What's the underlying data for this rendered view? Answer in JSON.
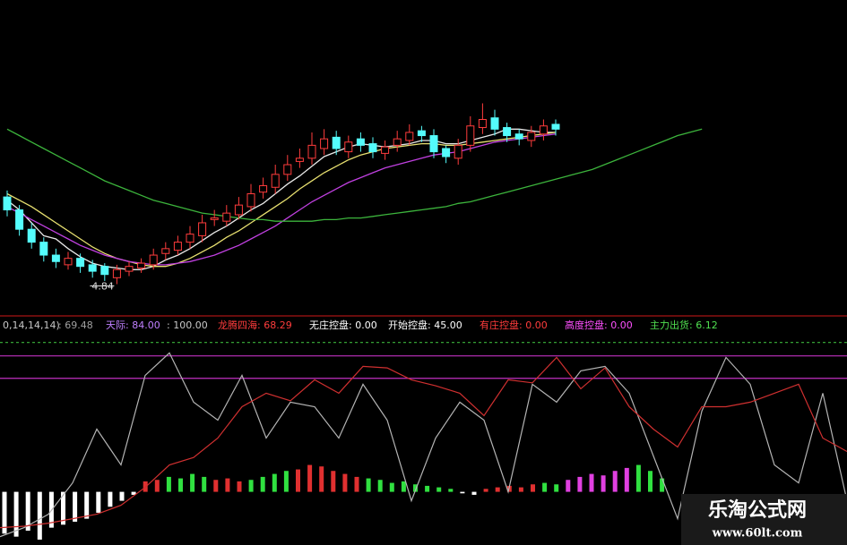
{
  "chart_data": [
    {
      "type": "candlestick",
      "ylim": [
        4.66,
        6.6
      ],
      "up_color": "#ff3c3c",
      "down_color": "#54fcfc",
      "open": [
        5.38,
        5.3,
        5.18,
        5.1,
        5.02,
        4.96,
        5.0,
        4.96,
        4.95,
        4.88,
        4.92,
        4.94,
        4.96,
        5.03,
        5.05,
        5.1,
        5.14,
        5.24,
        5.23,
        5.27,
        5.32,
        5.41,
        5.44,
        5.52,
        5.6,
        5.62,
        5.68,
        5.75,
        5.66,
        5.74,
        5.71,
        5.65,
        5.7,
        5.73,
        5.79,
        5.76,
        5.68,
        5.62,
        5.7,
        5.81,
        5.87,
        5.81,
        5.77,
        5.73,
        5.77,
        5.83
      ],
      "high": [
        5.42,
        5.33,
        5.22,
        5.13,
        5.06,
        5.04,
        5.03,
        4.99,
        4.97,
        4.96,
        4.98,
        5.0,
        5.06,
        5.1,
        5.14,
        5.2,
        5.27,
        5.3,
        5.33,
        5.38,
        5.46,
        5.5,
        5.58,
        5.64,
        5.68,
        5.78,
        5.8,
        5.79,
        5.76,
        5.78,
        5.75,
        5.73,
        5.79,
        5.83,
        5.82,
        5.8,
        5.7,
        5.74,
        5.88,
        5.96,
        5.92,
        5.84,
        5.8,
        5.82,
        5.86,
        5.86
      ],
      "low": [
        5.26,
        5.14,
        5.06,
        4.98,
        4.94,
        4.93,
        4.91,
        4.88,
        4.86,
        4.84,
        4.89,
        4.91,
        4.93,
        4.99,
        5.02,
        5.06,
        5.1,
        5.2,
        5.2,
        5.24,
        5.29,
        5.37,
        5.4,
        5.48,
        5.56,
        5.58,
        5.64,
        5.64,
        5.62,
        5.66,
        5.62,
        5.61,
        5.66,
        5.7,
        5.72,
        5.62,
        5.59,
        5.58,
        5.66,
        5.77,
        5.76,
        5.72,
        5.7,
        5.69,
        5.73,
        5.76
      ],
      "close": [
        5.3,
        5.18,
        5.1,
        5.02,
        4.98,
        5.0,
        4.95,
        4.92,
        4.9,
        4.93,
        4.95,
        4.97,
        5.02,
        5.06,
        5.1,
        5.15,
        5.22,
        5.25,
        5.28,
        5.33,
        5.4,
        5.45,
        5.52,
        5.58,
        5.62,
        5.7,
        5.74,
        5.68,
        5.72,
        5.7,
        5.66,
        5.69,
        5.74,
        5.78,
        5.76,
        5.66,
        5.63,
        5.7,
        5.82,
        5.86,
        5.8,
        5.76,
        5.74,
        5.78,
        5.82,
        5.8
      ],
      "series": [
        {
          "color": "#e8e8e8",
          "values": [
            5.36,
            5.3,
            5.22,
            5.14,
            5.12,
            5.06,
            5.01,
            4.97,
            4.95,
            4.94,
            4.93,
            4.93,
            4.95,
            4.99,
            5.02,
            5.06,
            5.11,
            5.16,
            5.2,
            5.25,
            5.3,
            5.34,
            5.4,
            5.46,
            5.51,
            5.57,
            5.63,
            5.66,
            5.69,
            5.71,
            5.7,
            5.69,
            5.7,
            5.71,
            5.73,
            5.73,
            5.71,
            5.71,
            5.73,
            5.75,
            5.77,
            5.8,
            5.8,
            5.79,
            5.78,
            5.78
          ]
        },
        {
          "color": "#e8e070",
          "values": [
            5.4,
            5.36,
            5.32,
            5.27,
            5.22,
            5.17,
            5.12,
            5.07,
            5.03,
            5.0,
            4.98,
            4.96,
            4.95,
            4.95,
            4.97,
            5.0,
            5.04,
            5.08,
            5.13,
            5.17,
            5.22,
            5.27,
            5.32,
            5.37,
            5.43,
            5.48,
            5.53,
            5.57,
            5.61,
            5.64,
            5.66,
            5.68,
            5.69,
            5.7,
            5.71,
            5.71,
            5.7,
            5.7,
            5.71,
            5.72,
            5.73,
            5.74,
            5.75,
            5.76,
            5.77,
            5.78
          ]
        },
        {
          "color": "#c040e0",
          "values": [
            5.32,
            5.28,
            5.24,
            5.2,
            5.16,
            5.12,
            5.08,
            5.05,
            5.02,
            5.0,
            4.98,
            4.97,
            4.96,
            4.96,
            4.97,
            4.98,
            5.0,
            5.02,
            5.05,
            5.08,
            5.12,
            5.16,
            5.2,
            5.25,
            5.3,
            5.35,
            5.39,
            5.43,
            5.47,
            5.5,
            5.53,
            5.56,
            5.58,
            5.6,
            5.62,
            5.64,
            5.65,
            5.66,
            5.68,
            5.7,
            5.72,
            5.73,
            5.74,
            5.75,
            5.76,
            5.77
          ]
        },
        {
          "color": "#3cb43c",
          "values": [
            5.8,
            5.76,
            5.72,
            5.68,
            5.64,
            5.6,
            5.56,
            5.52,
            5.48,
            5.45,
            5.42,
            5.39,
            5.36,
            5.34,
            5.32,
            5.3,
            5.28,
            5.27,
            5.26,
            5.25,
            5.24,
            5.24,
            5.23,
            5.23,
            5.23,
            5.23,
            5.24,
            5.24,
            5.25,
            5.25,
            5.26,
            5.27,
            5.28,
            5.29,
            5.3,
            5.31,
            5.32,
            5.34,
            5.35,
            5.37,
            5.39,
            5.41,
            5.43,
            5.45,
            5.47,
            5.49,
            5.51,
            5.53,
            5.55,
            5.58,
            5.61,
            5.64,
            5.67,
            5.7,
            5.73,
            5.76,
            5.78,
            5.8
          ]
        }
      ],
      "annotations": [
        {
          "text": "4.84"
        }
      ]
    },
    {
      "type": "indicator",
      "ylim": [
        -35,
        110
      ],
      "header": [
        {
          "text": "0,14,14,14)",
          "color": "#c8c8c8"
        },
        {
          "text": ": 69.48",
          "color": "#a0a0a0"
        },
        {
          "text": "天际: 84.00",
          "color": "#c080ff"
        },
        {
          "text": ": 100.00",
          "color": "#c8c8c8"
        },
        {
          "text": "龙腾四海: 68.29",
          "color": "#ff3c3c"
        },
        {
          "text": "无庄控盘: 0.00",
          "color": "#ffffff"
        },
        {
          "text": "开始控盘: 45.00",
          "color": "#ffffff"
        },
        {
          "text": "有庄控盘: 0.00",
          "color": "#ff3c3c"
        },
        {
          "text": "高度控盘: 0.00",
          "color": "#ff50ff"
        },
        {
          "text": "主力出货: 6.12",
          "color": "#50e050"
        }
      ],
      "hlines": [
        {
          "value": 100,
          "color": "#3cb43c",
          "dash": true
        },
        {
          "value": 91,
          "color": "#c030c0",
          "dash": false
        },
        {
          "value": 76,
          "color": "#c030c0",
          "dash": false
        }
      ],
      "series": [
        {
          "color": "#b4b4b4",
          "values": [
            -30,
            -24,
            -15,
            6,
            42,
            18,
            78,
            93,
            60,
            48,
            78,
            36,
            60,
            57,
            36,
            72,
            48,
            -6,
            36,
            60,
            48,
            0,
            72,
            60,
            81,
            84,
            66,
            24,
            -18,
            54,
            90,
            72,
            18,
            6,
            66,
            -6
          ]
        },
        {
          "color": "#d03030",
          "values": [
            -24,
            -23,
            -21,
            -18,
            -15,
            -9,
            3,
            18,
            23,
            36,
            57,
            66,
            61,
            75,
            66,
            84,
            83,
            75,
            71,
            66,
            51,
            75,
            73,
            90,
            69,
            83,
            57,
            42,
            30,
            57,
            57,
            60,
            66,
            72,
            36,
            27
          ]
        }
      ],
      "histogram": {
        "values": [
          -28,
          -30,
          -26,
          -32,
          -24,
          -22,
          -20,
          -18,
          -14,
          -10,
          -6,
          -2,
          7,
          8,
          10,
          9,
          12,
          10,
          8,
          9,
          7,
          8,
          10,
          12,
          14,
          15,
          18,
          17,
          14,
          12,
          10,
          9,
          8,
          6,
          7,
          5,
          4,
          3,
          2,
          -1,
          -2,
          2,
          3,
          4,
          3,
          5,
          6,
          5,
          8,
          10,
          12,
          11,
          14,
          16,
          18,
          14,
          9
        ],
        "colors": [
          "#ffffff",
          "#ffffff",
          "#ffffff",
          "#ffffff",
          "#ffffff",
          "#ffffff",
          "#ffffff",
          "#ffffff",
          "#ffffff",
          "#ffffff",
          "#ffffff",
          "#ffffff",
          "#e03030",
          "#e03030",
          "#30e040",
          "#30e040",
          "#30e040",
          "#30e040",
          "#e03030",
          "#e03030",
          "#e03030",
          "#30e040",
          "#30e040",
          "#30e040",
          "#30e040",
          "#e03030",
          "#e03030",
          "#e03030",
          "#e03030",
          "#e03030",
          "#e03030",
          "#30e040",
          "#30e040",
          "#30e040",
          "#30e040",
          "#30e040",
          "#30e040",
          "#30e040",
          "#30e040",
          "#ffffff",
          "#ffffff",
          "#e03030",
          "#e03030",
          "#e03030",
          "#e03030",
          "#e03030",
          "#30e040",
          "#30e040",
          "#e040e0",
          "#e040e0",
          "#e040e0",
          "#e040e0",
          "#e040e0",
          "#e040e0",
          "#30e040",
          "#30e040",
          "#30e040"
        ]
      }
    }
  ],
  "watermark": {
    "title": "乐淘公式网",
    "url": "www.60lt.com"
  }
}
